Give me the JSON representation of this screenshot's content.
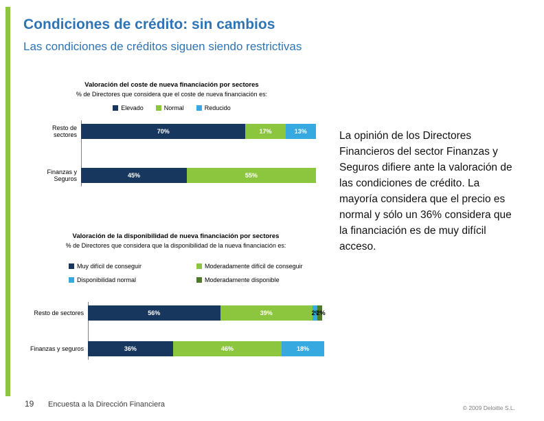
{
  "colors": {
    "accent_green": "#8CC63E",
    "title_blue": "#2E74B5",
    "navy": "#17375E",
    "green": "#8CC63E",
    "cyan": "#36A9E1",
    "dark_green": "#4E7A27"
  },
  "header": {
    "title": "Condiciones de crédito: sin cambios",
    "subtitle": "Las condiciones de créditos siguen siendo restrictivas"
  },
  "chart_data": [
    {
      "type": "bar",
      "orientation": "horizontal",
      "stacked": true,
      "title": "Valoración del coste de nueva financiación por sectores",
      "subtitle": "% de Directores que considera que el coste de nueva financiación es:",
      "categories": [
        "Resto de sectores",
        "Finanzas y Seguros"
      ],
      "series": [
        {
          "name": "Elevado",
          "color": "#17375E",
          "values": [
            70,
            45
          ]
        },
        {
          "name": "Normal",
          "color": "#8CC63E",
          "values": [
            17,
            55
          ]
        },
        {
          "name": "Reducido",
          "color": "#36A9E1",
          "values": [
            13,
            0
          ]
        }
      ],
      "xlim": [
        0,
        100
      ],
      "legend_position": "top",
      "grid": false
    },
    {
      "type": "bar",
      "orientation": "horizontal",
      "stacked": true,
      "title": "Valoración de la disponibilidad  de nueva financiación por sectores",
      "subtitle": "% de Directores que considera que la disponibilidad de la nueva financiación es:",
      "categories": [
        "Resto de sectores",
        "Finanzas y seguros"
      ],
      "series": [
        {
          "name": "Muy difícil de conseguir",
          "color": "#17375E",
          "values": [
            56,
            36
          ]
        },
        {
          "name": "Moderadamente difícil de conseguir",
          "color": "#8CC63E",
          "values": [
            39,
            46
          ]
        },
        {
          "name": "Disponibilidad normal",
          "color": "#36A9E1",
          "values": [
            2,
            18
          ]
        },
        {
          "name": "Moderadamente disponible",
          "color": "#4E7A27",
          "values": [
            2,
            0
          ]
        }
      ],
      "xlim": [
        0,
        100
      ],
      "legend_position": "top",
      "grid": false
    }
  ],
  "commentary": {
    "text": "La opinión de los Directores Financieros del sector Finanzas y Seguros difiere ante la valoración de las condiciones de crédito. La mayoría considera que el precio es normal y sólo un 36% considera que la financiación es de muy difícil acceso."
  },
  "footer": {
    "page_number": "19",
    "survey": "Encuesta a la Dirección Financiera",
    "copyright": "© 2009 Deloitte S.L."
  }
}
